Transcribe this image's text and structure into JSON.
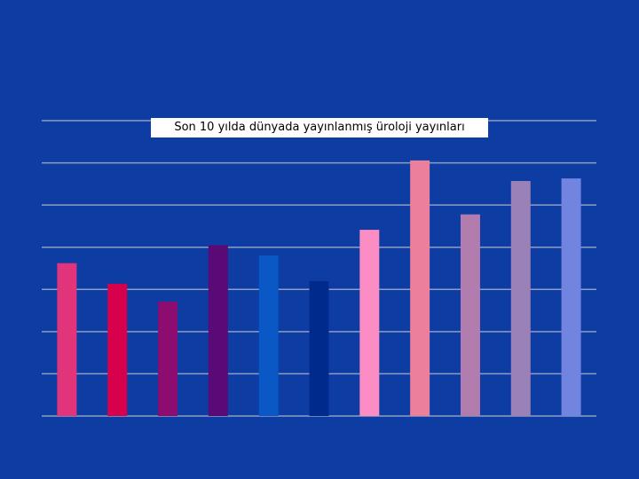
{
  "chart_data": {
    "type": "bar",
    "title": "Son 10 yılda dünyada yayınlanmış üroloji yayınları",
    "categories": [
      "",
      "",
      "",
      "",
      "",
      "",
      "",
      "",
      "",
      "",
      ""
    ],
    "values": [
      5.95,
      5.15,
      4.45,
      6.65,
      6.25,
      5.25,
      7.25,
      9.95,
      7.85,
      9.15,
      9.25
    ],
    "ylim": [
      0,
      11.5
    ],
    "gridlines": 7,
    "grid": true,
    "legend": "none",
    "colors": [
      "#e2347a",
      "#d7004d",
      "#8c0c6f",
      "#5a0a74",
      "#0a57c6",
      "#002b8d",
      "#fc8cc4",
      "#ec7f9b",
      "#b27caf",
      "#9a81b6",
      "#7185e0"
    ],
    "background": "#0d3ca3",
    "gridline_color": "#8f9cc4"
  }
}
